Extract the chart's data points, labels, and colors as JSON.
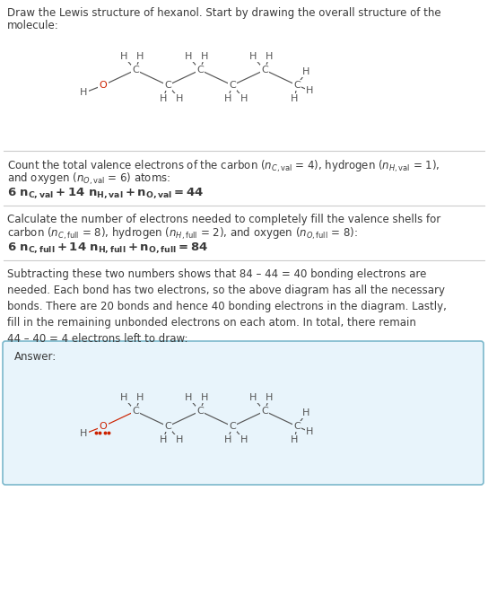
{
  "title_line1": "Draw the Lewis structure of hexanol. Start by drawing the overall structure of the",
  "title_line2": "molecule:",
  "s1_line1": "Count the total valence electrons of the carbon (",
  "s1_line1b": "= 4), hydrogen (",
  "s1_line1c": "= 1),",
  "s1_line2": "and oxygen (",
  "s1_line2b": "= 6) atoms:",
  "s1_eq": "6 n",
  "s2_line1": "Calculate the number of electrons needed to completely fill the valence shells for",
  "s2_line2a": "carbon (",
  "s2_line2b": "= 8), hydrogen (",
  "s2_line2c": "= 2), and oxygen (",
  "s2_line2d": "= 8):",
  "s3_text": "Subtracting these two numbers shows that 84 – 44 = 40 bonding electrons are\nneeded. Each bond has two electrons, so the above diagram has all the necessary\nbonds. There are 20 bonds and hence 40 bonding electrons in the diagram. Lastly,\nfill in the remaining unbonded electrons on each atom. In total, there remain\n44 – 40 = 4 electrons left to draw:",
  "answer_label": "Answer:",
  "bg_color": "#ffffff",
  "answer_bg_color": "#e8f4fb",
  "answer_border_color": "#7bb8cc",
  "text_color": "#3a3a3a",
  "atom_color": "#555555",
  "oxygen_color": "#cc2200",
  "bond_color": "#555555",
  "sep_color": "#cccccc",
  "fig_width": 5.44,
  "fig_height": 6.84,
  "dpi": 100
}
